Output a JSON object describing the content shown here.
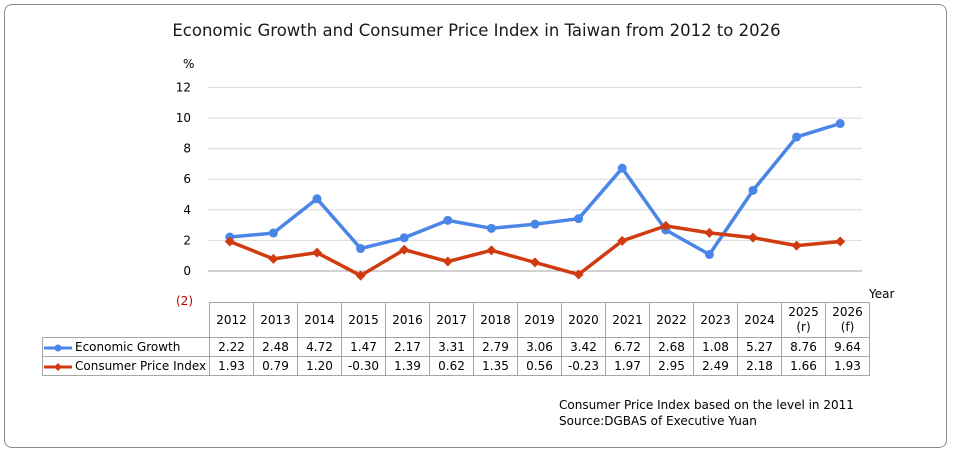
{
  "chart_data": {
    "type": "line",
    "title": "Economic Growth and Consumer Price Index in Taiwan from 2012 to 2026",
    "ylabel": "%",
    "xlabel": "Year",
    "ylim": [
      -2,
      12
    ],
    "yticks": [
      "(2)",
      "0",
      "2",
      "4",
      "6",
      "8",
      "10",
      "12"
    ],
    "grid": true,
    "legend": "data-table-left",
    "categories": [
      "2012",
      "2013",
      "2014",
      "2015",
      "2016",
      "2017",
      "2018",
      "2019",
      "2020",
      "2021",
      "2022",
      "2023",
      "2024",
      "2025 (r)",
      "2026 (f)"
    ],
    "category_lines": [
      [
        "2012"
      ],
      [
        "2013"
      ],
      [
        "2014"
      ],
      [
        "2015"
      ],
      [
        "2016"
      ],
      [
        "2017"
      ],
      [
        "2018"
      ],
      [
        "2019"
      ],
      [
        "2020"
      ],
      [
        "2021"
      ],
      [
        "2022"
      ],
      [
        "2023"
      ],
      [
        "2024"
      ],
      [
        "2025",
        "(r)"
      ],
      [
        "2026",
        "(f)"
      ]
    ],
    "series": [
      {
        "name": "Economic Growth",
        "color": "#4a86e8",
        "marker": "circle",
        "values": [
          2.22,
          2.48,
          4.72,
          1.47,
          2.17,
          3.31,
          2.79,
          3.06,
          3.42,
          6.72,
          2.68,
          1.08,
          5.27,
          8.76,
          9.64
        ],
        "labels": [
          "2.22",
          "2.48",
          "4.72",
          "1.47",
          "2.17",
          "3.31",
          "2.79",
          "3.06",
          "3.42",
          "6.72",
          "2.68",
          "1.08",
          "5.27",
          "8.76",
          "9.64"
        ]
      },
      {
        "name": "Consumer Price Index",
        "color": "#d13b10",
        "marker": "diamond",
        "values": [
          1.93,
          0.79,
          1.2,
          -0.3,
          1.39,
          0.62,
          1.35,
          0.56,
          -0.23,
          1.97,
          2.95,
          2.49,
          2.18,
          1.66,
          1.93
        ],
        "labels": [
          "1.93",
          "0.79",
          "1.20",
          "-0.30",
          "1.39",
          "0.62",
          "1.35",
          "0.56",
          "-0.23",
          "1.97",
          "2.95",
          "2.49",
          "2.18",
          "1.66",
          "1.93"
        ]
      }
    ],
    "notes": [
      "Consumer Price Index based on the level in 2011",
      "Source:DGBAS of Executive Yuan"
    ]
  }
}
